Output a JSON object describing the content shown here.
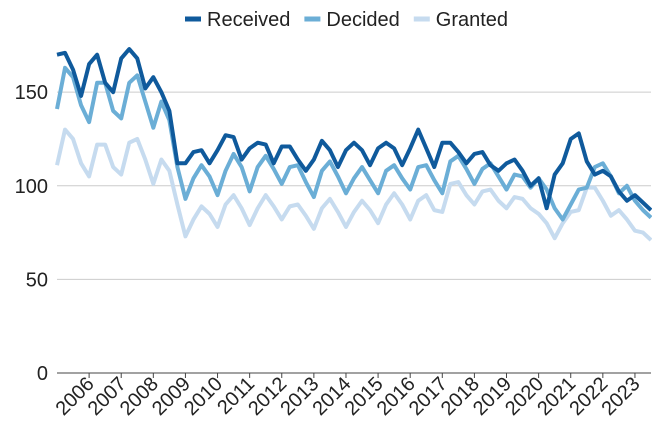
{
  "chart_data": {
    "type": "line",
    "categories": [
      null,
      null,
      null,
      null,
      "2006",
      null,
      null,
      null,
      "2007",
      null,
      null,
      null,
      "2008",
      null,
      null,
      null,
      "2009",
      null,
      null,
      null,
      "2010",
      null,
      null,
      null,
      "2011",
      null,
      null,
      null,
      "2012",
      null,
      null,
      null,
      "2013",
      null,
      null,
      null,
      "2014",
      null,
      null,
      null,
      "2015",
      null,
      null,
      null,
      "2016",
      null,
      null,
      null,
      "2017",
      null,
      null,
      null,
      "2018",
      null,
      null,
      null,
      "2019",
      null,
      null,
      null,
      "2020",
      null,
      null,
      null,
      "2021",
      null,
      null,
      null,
      "2022",
      null,
      null,
      null,
      "2023",
      null,
      null
    ],
    "series": [
      {
        "name": "Received",
        "color": "#0f5a9c",
        "values": [
          170,
          171,
          162,
          148,
          165,
          170,
          155,
          150,
          168,
          173,
          168,
          152,
          158,
          150,
          140,
          112,
          112,
          118,
          119,
          112,
          119,
          127,
          126,
          114,
          120,
          123,
          122,
          112,
          121,
          121,
          114,
          108,
          114,
          124,
          119,
          110,
          119,
          123,
          119,
          111,
          120,
          123,
          120,
          111,
          120,
          130,
          120,
          110,
          123,
          123,
          118,
          112,
          117,
          118,
          111,
          108,
          112,
          114,
          108,
          100,
          104,
          88,
          106,
          112,
          125,
          128,
          113,
          106,
          108,
          105,
          97,
          92,
          95,
          91,
          87
        ]
      },
      {
        "name": "Decided",
        "color": "#6baed6",
        "values": [
          141,
          163,
          158,
          143,
          134,
          155,
          155,
          140,
          136,
          155,
          159,
          145,
          131,
          145,
          135,
          110,
          93,
          104,
          111,
          105,
          95,
          108,
          117,
          110,
          97,
          110,
          116,
          109,
          101,
          110,
          111,
          102,
          94,
          108,
          113,
          105,
          96,
          104,
          110,
          103,
          96,
          108,
          111,
          104,
          98,
          110,
          111,
          103,
          96,
          113,
          116,
          109,
          101,
          109,
          112,
          105,
          98,
          106,
          105,
          99,
          104,
          98,
          88,
          82,
          90,
          98,
          99,
          110,
          112,
          105,
          96,
          100,
          92,
          87,
          83
        ]
      },
      {
        "name": "Granted",
        "color": "#c6dbef",
        "values": [
          111,
          130,
          125,
          112,
          105,
          122,
          122,
          110,
          106,
          123,
          125,
          114,
          101,
          114,
          108,
          90,
          73,
          82,
          89,
          85,
          78,
          90,
          95,
          88,
          79,
          88,
          95,
          89,
          82,
          89,
          90,
          84,
          77,
          88,
          93,
          86,
          78,
          86,
          92,
          87,
          80,
          90,
          96,
          90,
          82,
          92,
          95,
          87,
          86,
          101,
          102,
          95,
          90,
          97,
          98,
          92,
          88,
          94,
          93,
          88,
          85,
          80,
          72,
          80,
          86,
          87,
          99,
          99,
          92,
          84,
          87,
          82,
          76,
          75,
          71
        ]
      }
    ],
    "ylim": [
      0,
      180
    ],
    "yticks": [
      0,
      50,
      100,
      150
    ],
    "grid": true,
    "legend": "top"
  }
}
